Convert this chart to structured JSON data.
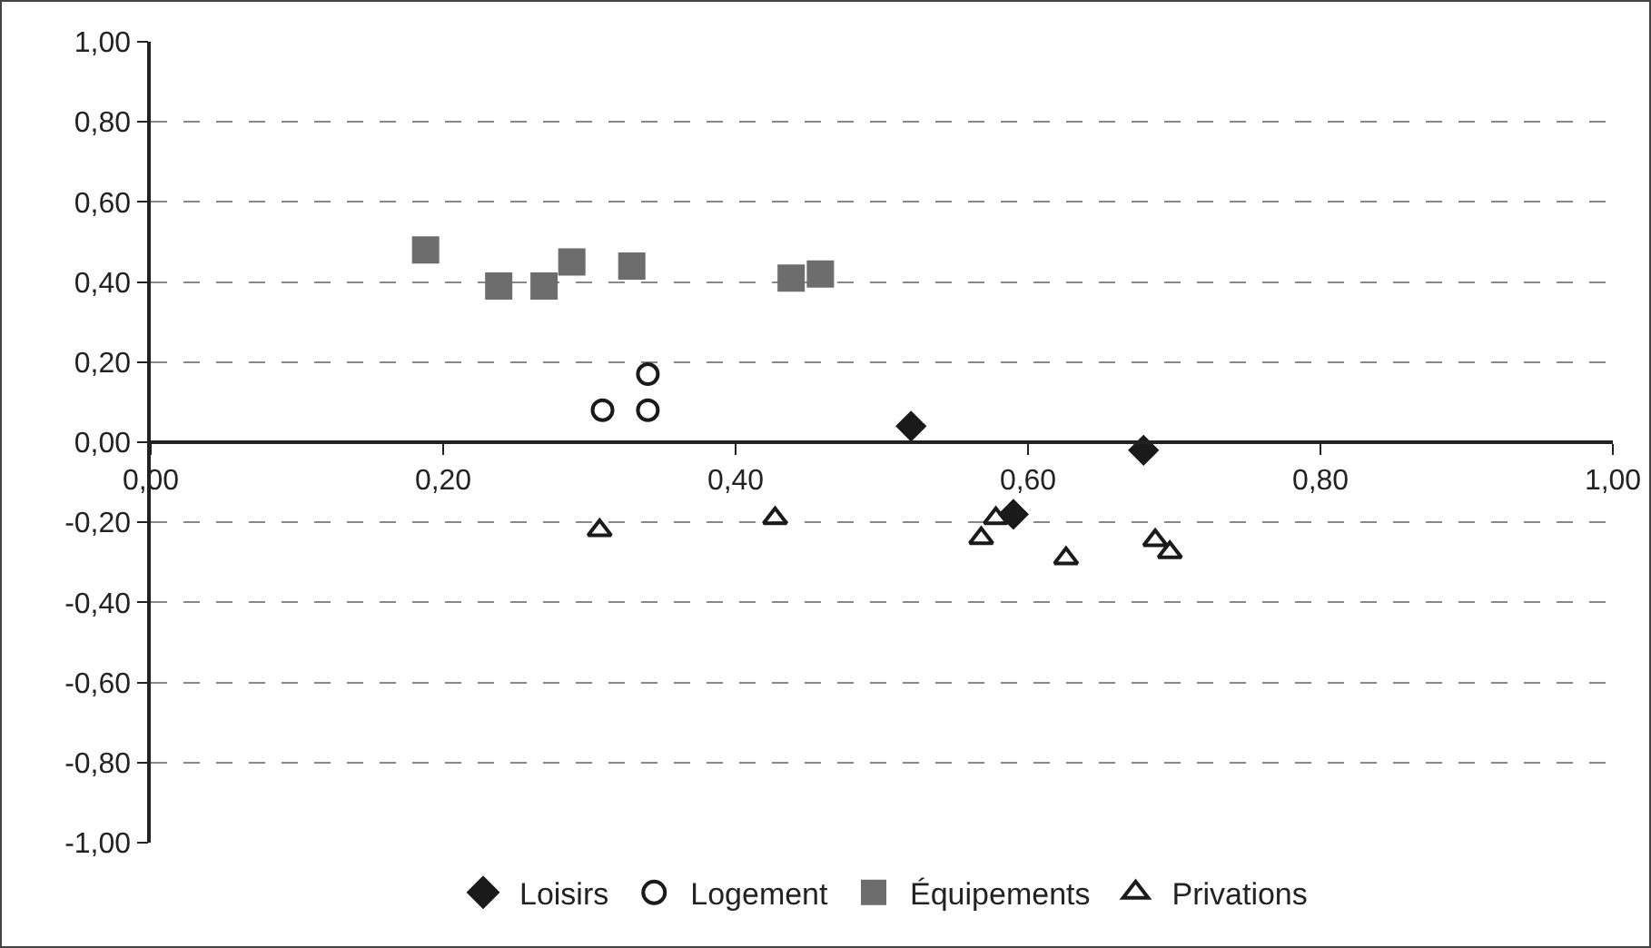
{
  "chart_data": {
    "type": "scatter",
    "xlim": [
      0,
      1
    ],
    "ylim": [
      -1,
      1
    ],
    "xticks": [
      {
        "value": 0,
        "label": "0,00"
      },
      {
        "value": 0.2,
        "label": "0,20"
      },
      {
        "value": 0.4,
        "label": "0,40"
      },
      {
        "value": 0.6,
        "label": "0,60"
      },
      {
        "value": 0.8,
        "label": "0,80"
      },
      {
        "value": 1,
        "label": "1,00"
      }
    ],
    "yticks": [
      {
        "value": -1,
        "label": "-1,00"
      },
      {
        "value": -0.8,
        "label": "-0,80"
      },
      {
        "value": -0.6,
        "label": "-0,60"
      },
      {
        "value": -0.4,
        "label": "-0,40"
      },
      {
        "value": -0.2,
        "label": "-0,20"
      },
      {
        "value": 0,
        "label": "0,00"
      },
      {
        "value": 0.2,
        "label": "0,20"
      },
      {
        "value": 0.4,
        "label": "0,40"
      },
      {
        "value": 0.6,
        "label": "0,60"
      },
      {
        "value": 0.8,
        "label": "0,80"
      },
      {
        "value": 1,
        "label": "1,00"
      }
    ],
    "grid": "y",
    "legend": "bottom",
    "series": [
      {
        "name": "Loisirs",
        "color": "#1a1a1a",
        "marker": "diamond",
        "x": [
          0.52,
          0.679,
          0.59
        ],
        "values": [
          0.04,
          -0.02,
          -0.18
        ]
      },
      {
        "name": "Logement",
        "color": "#1a1a1a",
        "marker": "circle",
        "x": [
          0.34,
          0.309,
          0.34
        ],
        "values": [
          0.17,
          0.08,
          0.08
        ]
      },
      {
        "name": "Équipements",
        "color": "#6d6d6d",
        "marker": "square",
        "x": [
          0.188,
          0.238,
          0.269,
          0.288,
          0.329,
          0.438,
          0.458
        ],
        "values": [
          0.48,
          0.39,
          0.39,
          0.45,
          0.44,
          0.41,
          0.42
        ]
      },
      {
        "name": "Privations",
        "color": "#1a1a1a",
        "marker": "triangle",
        "x": [
          0.307,
          0.427,
          0.578,
          0.568,
          0.626,
          0.687,
          0.697
        ],
        "values": [
          -0.22,
          -0.19,
          -0.19,
          -0.24,
          -0.29,
          -0.245,
          -0.275
        ]
      }
    ]
  }
}
